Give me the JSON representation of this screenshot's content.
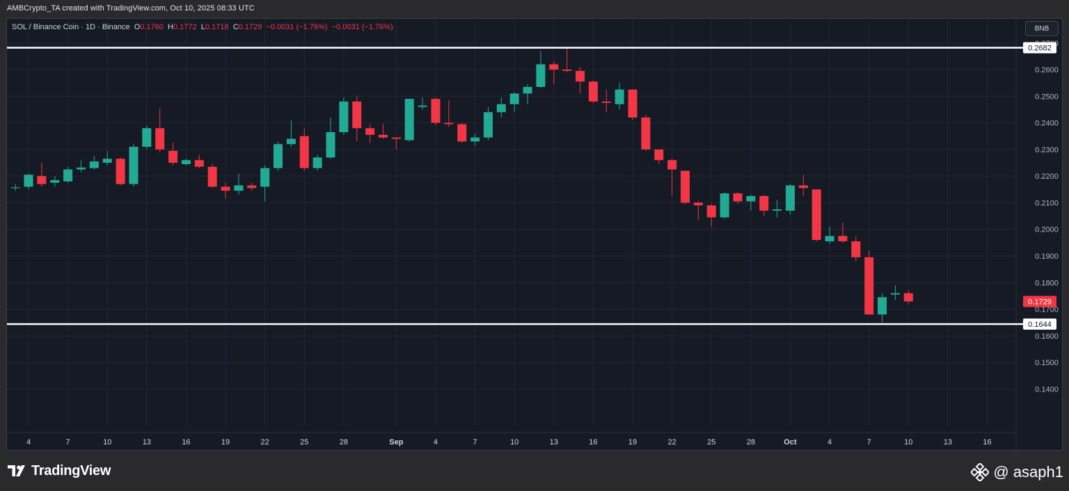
{
  "header": {
    "caption": "AMBCrypto_TA created with TradingView.com, Oct 10, 2025 08:33 UTC"
  },
  "legend": {
    "symbol": "SOL / Binance Coin · 1D · Binance",
    "o_label": "O",
    "o": "0.1760",
    "h_label": "H",
    "h": "0.1772",
    "l_label": "L",
    "l": "0.1718",
    "c_label": "C",
    "c": "0.1729",
    "change": "−0.0031 (−1.76%)",
    "change2": "−0.0031 (−1.76%)"
  },
  "currency_button": "BNB",
  "footer": {
    "brand": "TradingView",
    "handle": "@ asaph1"
  },
  "colors": {
    "up": "#22ab94",
    "down": "#f23645",
    "background": "#161a25",
    "level_line": "#ffffff"
  },
  "chart_data": {
    "type": "candlestick",
    "ylim": [
      0.132,
      0.277
    ],
    "y_ticks": [
      "0.2700",
      "0.2600",
      "0.2500",
      "0.2400",
      "0.2300",
      "0.2200",
      "0.2100",
      "0.2000",
      "0.1900",
      "0.1800",
      "0.1700",
      "0.1600",
      "0.1500",
      "0.1400"
    ],
    "y_tick_values": [
      0.27,
      0.26,
      0.25,
      0.24,
      0.23,
      0.22,
      0.21,
      0.2,
      0.19,
      0.18,
      0.17,
      0.16,
      0.15,
      0.14
    ],
    "x_ticks": [
      {
        "label": "4",
        "day": 4
      },
      {
        "label": "7",
        "day": 7
      },
      {
        "label": "10",
        "day": 10
      },
      {
        "label": "13",
        "day": 13
      },
      {
        "label": "16",
        "day": 16
      },
      {
        "label": "19",
        "day": 19
      },
      {
        "label": "22",
        "day": 22
      },
      {
        "label": "25",
        "day": 25
      },
      {
        "label": "28",
        "day": 28
      },
      {
        "label": "Sep",
        "day": 32
      },
      {
        "label": "4",
        "day": 35
      },
      {
        "label": "7",
        "day": 38
      },
      {
        "label": "10",
        "day": 41
      },
      {
        "label": "13",
        "day": 44
      },
      {
        "label": "16",
        "day": 47
      },
      {
        "label": "19",
        "day": 50
      },
      {
        "label": "22",
        "day": 53
      },
      {
        "label": "25",
        "day": 56
      },
      {
        "label": "28",
        "day": 59
      },
      {
        "label": "Oct",
        "day": 62
      },
      {
        "label": "4",
        "day": 65
      },
      {
        "label": "7",
        "day": 68
      },
      {
        "label": "10",
        "day": 71
      },
      {
        "label": "13",
        "day": 74
      },
      {
        "label": "16",
        "day": 77
      }
    ],
    "horizontal_levels": [
      {
        "value": 0.2682,
        "label": "0.2682"
      },
      {
        "value": 0.1644,
        "label": "0.1644"
      }
    ],
    "last_price": {
      "value": 0.1729,
      "label": "0.1729"
    },
    "candles": [
      {
        "day": 3,
        "o": 0.2155,
        "h": 0.217,
        "l": 0.2145,
        "c": 0.2158
      },
      {
        "day": 4,
        "o": 0.216,
        "h": 0.221,
        "l": 0.215,
        "c": 0.2205
      },
      {
        "day": 5,
        "o": 0.22,
        "h": 0.225,
        "l": 0.216,
        "c": 0.217
      },
      {
        "day": 6,
        "o": 0.2175,
        "h": 0.22,
        "l": 0.216,
        "c": 0.2185
      },
      {
        "day": 7,
        "o": 0.218,
        "h": 0.2235,
        "l": 0.2175,
        "c": 0.2225
      },
      {
        "day": 8,
        "o": 0.2225,
        "h": 0.226,
        "l": 0.2215,
        "c": 0.2232
      },
      {
        "day": 9,
        "o": 0.223,
        "h": 0.2275,
        "l": 0.2225,
        "c": 0.2255
      },
      {
        "day": 10,
        "o": 0.225,
        "h": 0.2295,
        "l": 0.224,
        "c": 0.2265
      },
      {
        "day": 11,
        "o": 0.2265,
        "h": 0.227,
        "l": 0.2165,
        "c": 0.217
      },
      {
        "day": 12,
        "o": 0.217,
        "h": 0.232,
        "l": 0.216,
        "c": 0.231
      },
      {
        "day": 13,
        "o": 0.231,
        "h": 0.239,
        "l": 0.23,
        "c": 0.238
      },
      {
        "day": 14,
        "o": 0.238,
        "h": 0.2455,
        "l": 0.229,
        "c": 0.23
      },
      {
        "day": 15,
        "o": 0.2295,
        "h": 0.2325,
        "l": 0.224,
        "c": 0.225
      },
      {
        "day": 16,
        "o": 0.2245,
        "h": 0.2265,
        "l": 0.224,
        "c": 0.226
      },
      {
        "day": 17,
        "o": 0.226,
        "h": 0.228,
        "l": 0.223,
        "c": 0.2235
      },
      {
        "day": 18,
        "o": 0.2235,
        "h": 0.2245,
        "l": 0.2155,
        "c": 0.216
      },
      {
        "day": 19,
        "o": 0.216,
        "h": 0.2175,
        "l": 0.2115,
        "c": 0.2145
      },
      {
        "day": 20,
        "o": 0.2145,
        "h": 0.221,
        "l": 0.213,
        "c": 0.2165
      },
      {
        "day": 21,
        "o": 0.2165,
        "h": 0.2175,
        "l": 0.2145,
        "c": 0.2155
      },
      {
        "day": 22,
        "o": 0.216,
        "h": 0.224,
        "l": 0.2105,
        "c": 0.223
      },
      {
        "day": 23,
        "o": 0.223,
        "h": 0.233,
        "l": 0.222,
        "c": 0.232
      },
      {
        "day": 24,
        "o": 0.232,
        "h": 0.241,
        "l": 0.231,
        "c": 0.234
      },
      {
        "day": 25,
        "o": 0.235,
        "h": 0.238,
        "l": 0.222,
        "c": 0.223
      },
      {
        "day": 26,
        "o": 0.223,
        "h": 0.228,
        "l": 0.222,
        "c": 0.227
      },
      {
        "day": 27,
        "o": 0.227,
        "h": 0.242,
        "l": 0.2265,
        "c": 0.2365
      },
      {
        "day": 28,
        "o": 0.2365,
        "h": 0.2495,
        "l": 0.2355,
        "c": 0.248
      },
      {
        "day": 29,
        "o": 0.248,
        "h": 0.25,
        "l": 0.233,
        "c": 0.238
      },
      {
        "day": 30,
        "o": 0.238,
        "h": 0.2395,
        "l": 0.2325,
        "c": 0.2355
      },
      {
        "day": 31,
        "o": 0.2355,
        "h": 0.2395,
        "l": 0.234,
        "c": 0.2345
      },
      {
        "day": 32,
        "o": 0.2345,
        "h": 0.2345,
        "l": 0.23,
        "c": 0.234
      },
      {
        "day": 33,
        "o": 0.2335,
        "h": 0.249,
        "l": 0.233,
        "c": 0.249
      },
      {
        "day": 34,
        "o": 0.246,
        "h": 0.2495,
        "l": 0.245,
        "c": 0.2465
      },
      {
        "day": 35,
        "o": 0.249,
        "h": 0.2495,
        "l": 0.239,
        "c": 0.24
      },
      {
        "day": 36,
        "o": 0.24,
        "h": 0.2485,
        "l": 0.2385,
        "c": 0.2395
      },
      {
        "day": 37,
        "o": 0.2395,
        "h": 0.24,
        "l": 0.2325,
        "c": 0.233
      },
      {
        "day": 38,
        "o": 0.233,
        "h": 0.236,
        "l": 0.2315,
        "c": 0.2345
      },
      {
        "day": 39,
        "o": 0.2345,
        "h": 0.246,
        "l": 0.2335,
        "c": 0.244
      },
      {
        "day": 40,
        "o": 0.244,
        "h": 0.2495,
        "l": 0.242,
        "c": 0.247
      },
      {
        "day": 41,
        "o": 0.247,
        "h": 0.2515,
        "l": 0.244,
        "c": 0.251
      },
      {
        "day": 42,
        "o": 0.251,
        "h": 0.2545,
        "l": 0.247,
        "c": 0.2535
      },
      {
        "day": 43,
        "o": 0.2535,
        "h": 0.267,
        "l": 0.253,
        "c": 0.262
      },
      {
        "day": 44,
        "o": 0.262,
        "h": 0.263,
        "l": 0.2545,
        "c": 0.26
      },
      {
        "day": 45,
        "o": 0.26,
        "h": 0.268,
        "l": 0.259,
        "c": 0.2595
      },
      {
        "day": 46,
        "o": 0.2595,
        "h": 0.261,
        "l": 0.251,
        "c": 0.2555
      },
      {
        "day": 47,
        "o": 0.2555,
        "h": 0.256,
        "l": 0.2475,
        "c": 0.248
      },
      {
        "day": 48,
        "o": 0.248,
        "h": 0.2525,
        "l": 0.244,
        "c": 0.2475
      },
      {
        "day": 49,
        "o": 0.247,
        "h": 0.255,
        "l": 0.245,
        "c": 0.2525
      },
      {
        "day": 50,
        "o": 0.2525,
        "h": 0.2525,
        "l": 0.241,
        "c": 0.242
      },
      {
        "day": 51,
        "o": 0.242,
        "h": 0.243,
        "l": 0.2295,
        "c": 0.23
      },
      {
        "day": 52,
        "o": 0.23,
        "h": 0.23,
        "l": 0.2245,
        "c": 0.226
      },
      {
        "day": 53,
        "o": 0.226,
        "h": 0.2265,
        "l": 0.2125,
        "c": 0.2225
      },
      {
        "day": 54,
        "o": 0.222,
        "h": 0.222,
        "l": 0.2095,
        "c": 0.21
      },
      {
        "day": 55,
        "o": 0.21,
        "h": 0.2105,
        "l": 0.2035,
        "c": 0.209
      },
      {
        "day": 56,
        "o": 0.209,
        "h": 0.2095,
        "l": 0.201,
        "c": 0.2045
      },
      {
        "day": 57,
        "o": 0.2045,
        "h": 0.214,
        "l": 0.204,
        "c": 0.2135
      },
      {
        "day": 58,
        "o": 0.2135,
        "h": 0.214,
        "l": 0.2095,
        "c": 0.2105
      },
      {
        "day": 59,
        "o": 0.2105,
        "h": 0.213,
        "l": 0.207,
        "c": 0.2125
      },
      {
        "day": 60,
        "o": 0.2125,
        "h": 0.213,
        "l": 0.205,
        "c": 0.207
      },
      {
        "day": 61,
        "o": 0.207,
        "h": 0.211,
        "l": 0.2045,
        "c": 0.2075
      },
      {
        "day": 62,
        "o": 0.207,
        "h": 0.217,
        "l": 0.2055,
        "c": 0.2165
      },
      {
        "day": 63,
        "o": 0.2165,
        "h": 0.2205,
        "l": 0.2125,
        "c": 0.2155
      },
      {
        "day": 64,
        "o": 0.215,
        "h": 0.215,
        "l": 0.1955,
        "c": 0.196
      },
      {
        "day": 65,
        "o": 0.1955,
        "h": 0.201,
        "l": 0.1945,
        "c": 0.1975
      },
      {
        "day": 66,
        "o": 0.1975,
        "h": 0.2025,
        "l": 0.195,
        "c": 0.1955
      },
      {
        "day": 67,
        "o": 0.1955,
        "h": 0.1975,
        "l": 0.188,
        "c": 0.1895
      },
      {
        "day": 68,
        "o": 0.1895,
        "h": 0.192,
        "l": 0.168,
        "c": 0.168
      },
      {
        "day": 69,
        "o": 0.168,
        "h": 0.176,
        "l": 0.165,
        "c": 0.1745
      },
      {
        "day": 70,
        "o": 0.1755,
        "h": 0.179,
        "l": 0.1735,
        "c": 0.176
      },
      {
        "day": 71,
        "o": 0.176,
        "h": 0.1772,
        "l": 0.1718,
        "c": 0.1729
      }
    ]
  }
}
